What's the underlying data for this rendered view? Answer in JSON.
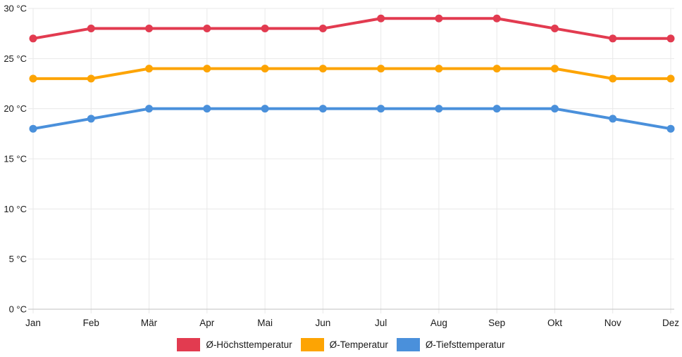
{
  "chart_data": {
    "type": "line",
    "title": "",
    "xlabel": "",
    "ylabel": "",
    "categories": [
      "Jan",
      "Feb",
      "Mär",
      "Apr",
      "Mai",
      "Jun",
      "Jul",
      "Aug",
      "Sep",
      "Okt",
      "Nov",
      "Dez"
    ],
    "series": [
      {
        "name": "Ø-Höchsttemperatur",
        "color": "#E23B50",
        "values": [
          27,
          28,
          28,
          28,
          28,
          28,
          29,
          29,
          29,
          28,
          27,
          27
        ]
      },
      {
        "name": "Ø-Temperatur",
        "color": "#FDA403",
        "values": [
          23,
          23,
          24,
          24,
          24,
          24,
          24,
          24,
          24,
          24,
          23,
          23
        ]
      },
      {
        "name": "Ø-Tiefsttemperatur",
        "color": "#4A90DB",
        "values": [
          18,
          19,
          20,
          20,
          20,
          20,
          20,
          20,
          20,
          20,
          19,
          18
        ]
      }
    ],
    "ylim": [
      0,
      30
    ],
    "ytick_values": [
      0,
      5,
      10,
      15,
      20,
      25,
      30
    ],
    "ytick_labels": [
      "0 °C",
      "5 °C",
      "10 °C",
      "15 °C",
      "20 °C",
      "25 °C",
      "30 °C"
    ],
    "grid": true,
    "legend_position": "bottom",
    "colors": {
      "gridline": "#E8E8E8",
      "axis_line": "#C2C2C2",
      "text": "#1A1A1A",
      "background": "#FFFFFF"
    }
  }
}
